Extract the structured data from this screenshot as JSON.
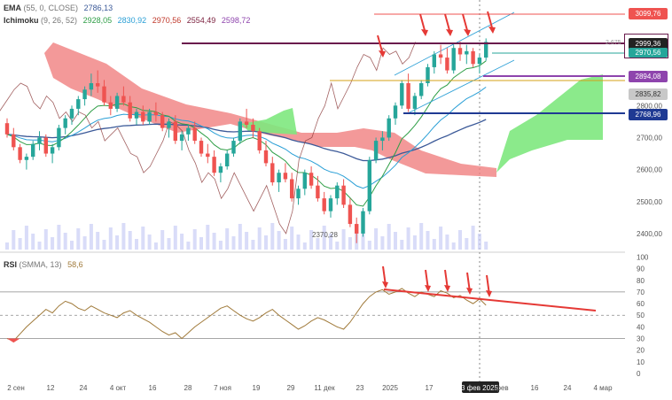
{
  "legends": {
    "ema": {
      "name": "EMA",
      "params": "(55, 0, CLOSE)",
      "value": "2786,13",
      "color": "#3b5998"
    },
    "ichimoku": {
      "name": "Ichimoku",
      "params": "(9, 26, 52)",
      "values": [
        {
          "text": "2928,05",
          "color": "#2e9e46"
        },
        {
          "text": "2830,92",
          "color": "#2a9fd6"
        },
        {
          "text": "2970,56",
          "color": "#c0392b"
        },
        {
          "text": "2554,49",
          "color": "#7a1f3d"
        },
        {
          "text": "2598,72",
          "color": "#8e44ad"
        }
      ]
    },
    "rsi": {
      "name": "RSI",
      "params": "(SMMA, 13)",
      "value": "58,6",
      "color": "#a07a3a"
    }
  },
  "price_badges": [
    {
      "text": "3099,76",
      "bg": "#ef5350"
    },
    {
      "text": "2999,36",
      "bg": "#222222"
    },
    {
      "text": "2970,56",
      "bg": "#26a69a"
    },
    {
      "text": "2894,08",
      "bg": "#8e44ad"
    },
    {
      "text": "2835,82",
      "bg": "#c8c8c8"
    },
    {
      "text": "2768,96",
      "bg": "#1f3a93"
    }
  ],
  "small_label": "2,675",
  "low_annotation": "2370,28",
  "x_axis_labels": [
    "2 сен",
    "12",
    "24",
    "4 окт",
    "16",
    "28",
    "7 ноя",
    "19",
    "29",
    "11 дек",
    "23",
    "2025",
    "17",
    "3 фев 2025",
    "фев",
    "16",
    "24",
    "4 мар"
  ],
  "price_axis_ticks": [
    "2800,00",
    "2700,00",
    "2600,00",
    "2500,00",
    "2400,00"
  ],
  "rsi_axis_ticks": [
    "100",
    "90",
    "80",
    "70",
    "60",
    "50",
    "40",
    "30",
    "20",
    "10",
    "0"
  ],
  "colors": {
    "up": "#26a69a",
    "down": "#ef5350",
    "cloud_bull": "#7ee87e",
    "cloud_bear": "#f08080",
    "arrow": "#e53935",
    "rsi_line": "#a07a3a"
  },
  "chart_data": {
    "type": "candlestick",
    "price_range": [
      2350,
      3130
    ],
    "candles": [
      [
        2745,
        2760,
        2700,
        2710
      ],
      [
        2710,
        2730,
        2660,
        2670
      ],
      [
        2670,
        2680,
        2620,
        2630
      ],
      [
        2630,
        2650,
        2600,
        2640
      ],
      [
        2640,
        2690,
        2630,
        2680
      ],
      [
        2680,
        2720,
        2660,
        2700
      ],
      [
        2700,
        2710,
        2640,
        2650
      ],
      [
        2650,
        2680,
        2620,
        2670
      ],
      [
        2670,
        2740,
        2660,
        2730
      ],
      [
        2730,
        2770,
        2710,
        2760
      ],
      [
        2760,
        2800,
        2740,
        2790
      ],
      [
        2790,
        2830,
        2770,
        2820
      ],
      [
        2820,
        2860,
        2800,
        2850
      ],
      [
        2850,
        2900,
        2830,
        2870
      ],
      [
        2870,
        2910,
        2840,
        2860
      ],
      [
        2860,
        2880,
        2800,
        2810
      ],
      [
        2810,
        2830,
        2770,
        2790
      ],
      [
        2790,
        2840,
        2780,
        2830
      ],
      [
        2830,
        2860,
        2800,
        2810
      ],
      [
        2810,
        2830,
        2750,
        2760
      ],
      [
        2760,
        2790,
        2740,
        2780
      ],
      [
        2780,
        2800,
        2740,
        2750
      ],
      [
        2750,
        2790,
        2740,
        2780
      ],
      [
        2780,
        2810,
        2750,
        2770
      ],
      [
        2770,
        2780,
        2720,
        2730
      ],
      [
        2730,
        2760,
        2700,
        2750
      ],
      [
        2750,
        2770,
        2680,
        2690
      ],
      [
        2690,
        2720,
        2660,
        2710
      ],
      [
        2710,
        2740,
        2690,
        2730
      ],
      [
        2730,
        2750,
        2680,
        2690
      ],
      [
        2690,
        2700,
        2640,
        2650
      ],
      [
        2650,
        2680,
        2620,
        2640
      ],
      [
        2640,
        2660,
        2580,
        2590
      ],
      [
        2590,
        2620,
        2560,
        2610
      ],
      [
        2610,
        2660,
        2600,
        2650
      ],
      [
        2650,
        2700,
        2640,
        2690
      ],
      [
        2690,
        2760,
        2680,
        2750
      ],
      [
        2750,
        2790,
        2730,
        2740
      ],
      [
        2740,
        2760,
        2700,
        2720
      ],
      [
        2720,
        2730,
        2650,
        2660
      ],
      [
        2660,
        2690,
        2610,
        2620
      ],
      [
        2620,
        2640,
        2550,
        2560
      ],
      [
        2560,
        2600,
        2530,
        2590
      ],
      [
        2590,
        2620,
        2560,
        2570
      ],
      [
        2570,
        2590,
        2500,
        2510
      ],
      [
        2510,
        2550,
        2490,
        2540
      ],
      [
        2540,
        2600,
        2520,
        2590
      ],
      [
        2590,
        2610,
        2540,
        2550
      ],
      [
        2550,
        2580,
        2500,
        2510
      ],
      [
        2510,
        2530,
        2460,
        2470
      ],
      [
        2470,
        2520,
        2450,
        2510
      ],
      [
        2510,
        2560,
        2490,
        2550
      ],
      [
        2550,
        2570,
        2480,
        2490
      ],
      [
        2490,
        2510,
        2420,
        2430
      ],
      [
        2430,
        2450,
        2370,
        2400
      ],
      [
        2400,
        2480,
        2390,
        2470
      ],
      [
        2470,
        2640,
        2460,
        2630
      ],
      [
        2630,
        2700,
        2620,
        2690
      ],
      [
        2690,
        2720,
        2660,
        2700
      ],
      [
        2700,
        2770,
        2690,
        2760
      ],
      [
        2760,
        2810,
        2740,
        2800
      ],
      [
        2800,
        2880,
        2790,
        2870
      ],
      [
        2870,
        2900,
        2780,
        2790
      ],
      [
        2790,
        2840,
        2770,
        2830
      ],
      [
        2830,
        2880,
        2820,
        2870
      ],
      [
        2870,
        2930,
        2860,
        2920
      ],
      [
        2920,
        2970,
        2900,
        2960
      ],
      [
        2960,
        2990,
        2930,
        2950
      ],
      [
        2950,
        2980,
        2900,
        2910
      ],
      [
        2910,
        2990,
        2900,
        2980
      ],
      [
        2980,
        3000,
        2940,
        2960
      ],
      [
        2960,
        2990,
        2930,
        2970
      ],
      [
        2970,
        2980,
        2920,
        2930
      ],
      [
        2930,
        2960,
        2900,
        2950
      ],
      [
        2950,
        3010,
        2940,
        2999
      ]
    ],
    "rsi": [
      30,
      28,
      34,
      40,
      45,
      50,
      55,
      52,
      58,
      62,
      60,
      56,
      54,
      58,
      55,
      52,
      50,
      48,
      52,
      54,
      50,
      47,
      44,
      40,
      36,
      33,
      35,
      30,
      35,
      40,
      44,
      48,
      52,
      56,
      58,
      54,
      50,
      47,
      45,
      48,
      52,
      55,
      50,
      46,
      42,
      38,
      41,
      45,
      48,
      46,
      43,
      40,
      38,
      44,
      52,
      60,
      66,
      70,
      72,
      68,
      70,
      73,
      69,
      66,
      70,
      68,
      66,
      71,
      69,
      65,
      67,
      63,
      60,
      64,
      58.6
    ],
    "rsi_levels": [
      70,
      50,
      30
    ]
  }
}
